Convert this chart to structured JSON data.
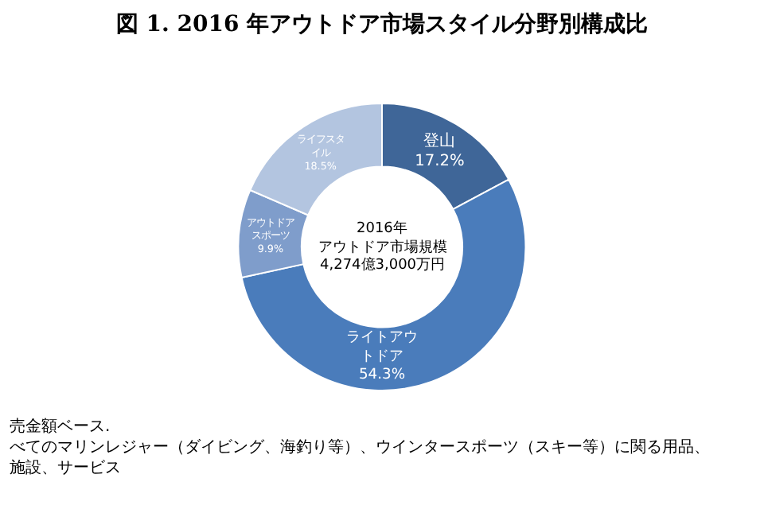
{
  "chart_data": {
    "type": "donut",
    "title": "図 1. 2016 年アウトドア市場スタイル分野別構成比",
    "categories": [
      "登山",
      "ライトアウトドア",
      "アウトドアスポーツ",
      "ライフスタイル"
    ],
    "values": [
      17.2,
      54.3,
      9.9,
      18.5
    ],
    "colors": [
      "#3f6698",
      "#4a7cbb",
      "#7f9dcb",
      "#b3c5e0"
    ],
    "value_labels": [
      "17.2%",
      "54.3%",
      "9.9%",
      "18.5%"
    ],
    "legend": false,
    "annotations": [
      "2016年",
      "アウトドア市場規模",
      "4,274億3,000万円",
      "売金額ベース.",
      "べてのマリンレジャー（ダイビング、海釣り等）、ウインタースポーツ（スキー等）に関る用品、施設、サービス"
    ]
  }
}
